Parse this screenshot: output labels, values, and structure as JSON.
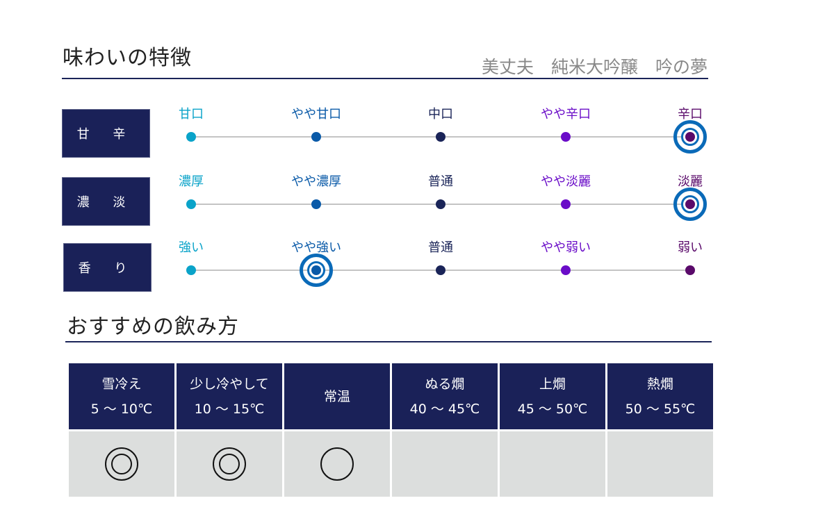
{
  "taste": {
    "title": "味わいの特徴",
    "product": "美丈夫　純米大吟醸　吟の夢",
    "level_colors": [
      "#0aa3c9",
      "#0a5aa8",
      "#1a2458",
      "#6a0cc8",
      "#5a0a6a"
    ],
    "highlight_color": "#0a6ab8",
    "rows": [
      {
        "label": "甘 辛",
        "levels": [
          "甘口",
          "やや甘口",
          "中口",
          "やや辛口",
          "辛口"
        ],
        "selected": 4
      },
      {
        "label": "濃 淡",
        "levels": [
          "濃厚",
          "やや濃厚",
          "普通",
          "やや淡麗",
          "淡麗"
        ],
        "selected": 4
      },
      {
        "label": "香 り",
        "levels": [
          "強い",
          "やや強い",
          "普通",
          "やや弱い",
          "弱い"
        ],
        "selected": 1
      }
    ]
  },
  "serving": {
    "title": "おすすめの飲み方",
    "columns": [
      {
        "name": "雪冷え",
        "temp": "5 ～ 10℃",
        "rating": "double-circle"
      },
      {
        "name": "少し冷やして",
        "temp": "10 ～ 15℃",
        "rating": "double-circle"
      },
      {
        "name": "常温",
        "temp": "",
        "rating": "circle"
      },
      {
        "name": "ぬる燗",
        "temp": "40 ～ 45℃",
        "rating": "none"
      },
      {
        "name": "上燗",
        "temp": "45 ～ 50℃",
        "rating": "none"
      },
      {
        "name": "熱燗",
        "temp": "50 ～ 55℃",
        "rating": "none"
      }
    ]
  }
}
